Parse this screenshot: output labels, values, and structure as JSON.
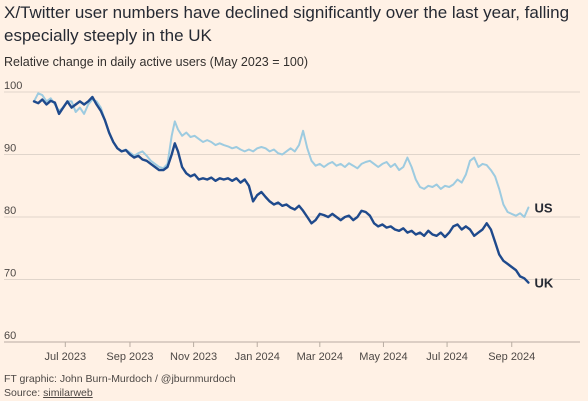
{
  "title": "X/Twitter user numbers have declined significantly over the last year, falling especially steeply in the UK",
  "subtitle": "Relative change in daily active users (May 2023 = 100)",
  "footer": {
    "credit": "FT graphic: John Burn-Murdoch / @jburnmurdoch",
    "source_prefix": "Source: ",
    "source_name": "similarweb"
  },
  "colors": {
    "background": "#fff1e5",
    "gridline": "#e0d5cb",
    "us_series": "#9dcbe0",
    "uk_series": "#1f4a8c"
  },
  "chart_data": {
    "type": "line",
    "ylim": [
      60,
      100
    ],
    "yticks": [
      60,
      70,
      80,
      90,
      100
    ],
    "xlim": [
      "2023-06-01",
      "2024-09-30"
    ],
    "xticks": [
      {
        "date": "2023-07-01",
        "label": "Jul 2023"
      },
      {
        "date": "2023-09-01",
        "label": "Sep 2023"
      },
      {
        "date": "2023-11-01",
        "label": "Nov 2023"
      },
      {
        "date": "2024-01-01",
        "label": "Jan 2024"
      },
      {
        "date": "2024-03-01",
        "label": "Mar 2024"
      },
      {
        "date": "2024-05-01",
        "label": "May 2024"
      },
      {
        "date": "2024-07-01",
        "label": "Jul 2024"
      },
      {
        "date": "2024-09-01",
        "label": "Sep 2024"
      }
    ],
    "grid": true,
    "series": [
      {
        "name": "US",
        "color": "#9dcbe0",
        "points": [
          [
            "2023-06-01",
            98.5
          ],
          [
            "2023-06-05",
            99.8
          ],
          [
            "2023-06-09",
            99.5
          ],
          [
            "2023-06-13",
            98.5
          ],
          [
            "2023-06-17",
            99.0
          ],
          [
            "2023-06-21",
            98.0
          ],
          [
            "2023-06-25",
            97.0
          ],
          [
            "2023-06-29",
            97.5
          ],
          [
            "2023-07-03",
            98.5
          ],
          [
            "2023-07-07",
            98.5
          ],
          [
            "2023-07-11",
            96.8
          ],
          [
            "2023-07-15",
            97.5
          ],
          [
            "2023-07-19",
            96.5
          ],
          [
            "2023-07-23",
            98.0
          ],
          [
            "2023-07-27",
            98.8
          ],
          [
            "2023-07-31",
            98.5
          ],
          [
            "2023-08-04",
            97.5
          ],
          [
            "2023-08-08",
            95.5
          ],
          [
            "2023-08-12",
            93.5
          ],
          [
            "2023-08-16",
            92.0
          ],
          [
            "2023-08-20",
            91.0
          ],
          [
            "2023-08-24",
            90.5
          ],
          [
            "2023-08-28",
            90.8
          ],
          [
            "2023-09-01",
            90.3
          ],
          [
            "2023-09-05",
            89.8
          ],
          [
            "2023-09-09",
            90.2
          ],
          [
            "2023-09-13",
            90.5
          ],
          [
            "2023-09-17",
            89.8
          ],
          [
            "2023-09-21",
            89.0
          ],
          [
            "2023-09-25",
            88.5
          ],
          [
            "2023-09-29",
            88.0
          ],
          [
            "2023-10-03",
            87.8
          ],
          [
            "2023-10-07",
            88.5
          ],
          [
            "2023-10-11",
            93.0
          ],
          [
            "2023-10-14",
            95.3
          ],
          [
            "2023-10-17",
            94.0
          ],
          [
            "2023-10-21",
            93.0
          ],
          [
            "2023-10-25",
            93.5
          ],
          [
            "2023-10-29",
            92.8
          ],
          [
            "2023-11-02",
            93.0
          ],
          [
            "2023-11-06",
            92.5
          ],
          [
            "2023-11-10",
            92.0
          ],
          [
            "2023-11-14",
            92.3
          ],
          [
            "2023-11-18",
            92.0
          ],
          [
            "2023-11-22",
            91.5
          ],
          [
            "2023-11-26",
            91.8
          ],
          [
            "2023-11-30",
            91.5
          ],
          [
            "2023-12-04",
            91.3
          ],
          [
            "2023-12-08",
            91.0
          ],
          [
            "2023-12-12",
            91.2
          ],
          [
            "2023-12-16",
            90.8
          ],
          [
            "2023-12-20",
            90.5
          ],
          [
            "2023-12-24",
            90.8
          ],
          [
            "2023-12-28",
            90.5
          ],
          [
            "2024-01-01",
            91.0
          ],
          [
            "2024-01-05",
            91.2
          ],
          [
            "2024-01-09",
            91.0
          ],
          [
            "2024-01-13",
            90.5
          ],
          [
            "2024-01-17",
            90.8
          ],
          [
            "2024-01-21",
            90.2
          ],
          [
            "2024-01-25",
            90.0
          ],
          [
            "2024-01-29",
            90.5
          ],
          [
            "2024-02-02",
            91.0
          ],
          [
            "2024-02-06",
            90.5
          ],
          [
            "2024-02-10",
            91.5
          ],
          [
            "2024-02-14",
            93.8
          ],
          [
            "2024-02-18",
            91.0
          ],
          [
            "2024-02-22",
            89.0
          ],
          [
            "2024-02-26",
            88.2
          ],
          [
            "2024-03-01",
            88.5
          ],
          [
            "2024-03-05",
            88.0
          ],
          [
            "2024-03-09",
            88.5
          ],
          [
            "2024-03-13",
            88.8
          ],
          [
            "2024-03-17",
            88.2
          ],
          [
            "2024-03-21",
            88.5
          ],
          [
            "2024-03-25",
            88.0
          ],
          [
            "2024-03-29",
            88.6
          ],
          [
            "2024-04-02",
            88.2
          ],
          [
            "2024-04-06",
            87.8
          ],
          [
            "2024-04-10",
            88.5
          ],
          [
            "2024-04-14",
            88.8
          ],
          [
            "2024-04-18",
            89.0
          ],
          [
            "2024-04-22",
            88.5
          ],
          [
            "2024-04-26",
            88.0
          ],
          [
            "2024-04-30",
            88.5
          ],
          [
            "2024-05-04",
            88.8
          ],
          [
            "2024-05-08",
            88.0
          ],
          [
            "2024-05-12",
            88.5
          ],
          [
            "2024-05-16",
            87.5
          ],
          [
            "2024-05-20",
            88.0
          ],
          [
            "2024-05-24",
            89.5
          ],
          [
            "2024-05-28",
            88.0
          ],
          [
            "2024-06-01",
            86.0
          ],
          [
            "2024-06-05",
            84.8
          ],
          [
            "2024-06-09",
            84.5
          ],
          [
            "2024-06-13",
            85.0
          ],
          [
            "2024-06-17",
            84.8
          ],
          [
            "2024-06-21",
            85.2
          ],
          [
            "2024-06-25",
            84.5
          ],
          [
            "2024-06-29",
            85.0
          ],
          [
            "2024-07-03",
            84.8
          ],
          [
            "2024-07-07",
            85.2
          ],
          [
            "2024-07-11",
            86.0
          ],
          [
            "2024-07-15",
            85.5
          ],
          [
            "2024-07-19",
            86.8
          ],
          [
            "2024-07-23",
            89.0
          ],
          [
            "2024-07-27",
            89.5
          ],
          [
            "2024-07-31",
            88.0
          ],
          [
            "2024-08-04",
            88.5
          ],
          [
            "2024-08-08",
            88.3
          ],
          [
            "2024-08-12",
            87.5
          ],
          [
            "2024-08-16",
            86.5
          ],
          [
            "2024-08-20",
            84.5
          ],
          [
            "2024-08-24",
            82.0
          ],
          [
            "2024-08-28",
            80.8
          ],
          [
            "2024-09-01",
            80.5
          ],
          [
            "2024-09-05",
            80.2
          ],
          [
            "2024-09-09",
            80.6
          ],
          [
            "2024-09-13",
            80.0
          ],
          [
            "2024-09-17",
            81.5
          ]
        ]
      },
      {
        "name": "UK",
        "color": "#1f4a8c",
        "points": [
          [
            "2023-06-01",
            98.5
          ],
          [
            "2023-06-05",
            98.2
          ],
          [
            "2023-06-09",
            98.8
          ],
          [
            "2023-06-13",
            98.0
          ],
          [
            "2023-06-17",
            98.6
          ],
          [
            "2023-06-21",
            98.3
          ],
          [
            "2023-06-25",
            96.5
          ],
          [
            "2023-06-29",
            97.5
          ],
          [
            "2023-07-03",
            98.5
          ],
          [
            "2023-07-07",
            97.5
          ],
          [
            "2023-07-11",
            98.0
          ],
          [
            "2023-07-15",
            98.5
          ],
          [
            "2023-07-19",
            98.0
          ],
          [
            "2023-07-23",
            98.5
          ],
          [
            "2023-07-27",
            99.2
          ],
          [
            "2023-07-31",
            98.0
          ],
          [
            "2023-08-04",
            97.0
          ],
          [
            "2023-08-08",
            95.5
          ],
          [
            "2023-08-12",
            93.5
          ],
          [
            "2023-08-16",
            92.0
          ],
          [
            "2023-08-20",
            91.0
          ],
          [
            "2023-08-24",
            90.5
          ],
          [
            "2023-08-28",
            90.7
          ],
          [
            "2023-09-01",
            90.0
          ],
          [
            "2023-09-05",
            89.5
          ],
          [
            "2023-09-09",
            89.8
          ],
          [
            "2023-09-13",
            89.2
          ],
          [
            "2023-09-17",
            89.0
          ],
          [
            "2023-09-21",
            88.5
          ],
          [
            "2023-09-25",
            88.0
          ],
          [
            "2023-09-29",
            87.5
          ],
          [
            "2023-10-03",
            87.5
          ],
          [
            "2023-10-07",
            88.0
          ],
          [
            "2023-10-11",
            90.0
          ],
          [
            "2023-10-14",
            91.8
          ],
          [
            "2023-10-17",
            90.5
          ],
          [
            "2023-10-21",
            88.0
          ],
          [
            "2023-10-25",
            87.0
          ],
          [
            "2023-10-29",
            86.5
          ],
          [
            "2023-11-02",
            86.8
          ],
          [
            "2023-11-06",
            86.0
          ],
          [
            "2023-11-10",
            86.2
          ],
          [
            "2023-11-14",
            86.0
          ],
          [
            "2023-11-18",
            86.3
          ],
          [
            "2023-11-22",
            85.8
          ],
          [
            "2023-11-26",
            86.2
          ],
          [
            "2023-11-30",
            86.0
          ],
          [
            "2023-12-04",
            86.2
          ],
          [
            "2023-12-08",
            85.8
          ],
          [
            "2023-12-12",
            86.2
          ],
          [
            "2023-12-16",
            85.5
          ],
          [
            "2023-12-20",
            86.0
          ],
          [
            "2023-12-24",
            85.0
          ],
          [
            "2023-12-28",
            82.5
          ],
          [
            "2024-01-01",
            83.5
          ],
          [
            "2024-01-05",
            84.0
          ],
          [
            "2024-01-09",
            83.2
          ],
          [
            "2024-01-13",
            82.5
          ],
          [
            "2024-01-17",
            82.0
          ],
          [
            "2024-01-21",
            82.3
          ],
          [
            "2024-01-25",
            81.8
          ],
          [
            "2024-01-29",
            82.0
          ],
          [
            "2024-02-02",
            81.5
          ],
          [
            "2024-02-06",
            81.2
          ],
          [
            "2024-02-10",
            81.8
          ],
          [
            "2024-02-14",
            81.0
          ],
          [
            "2024-02-18",
            80.0
          ],
          [
            "2024-02-22",
            79.0
          ],
          [
            "2024-02-26",
            79.5
          ],
          [
            "2024-03-01",
            80.5
          ],
          [
            "2024-03-05",
            80.3
          ],
          [
            "2024-03-09",
            80.0
          ],
          [
            "2024-03-13",
            80.5
          ],
          [
            "2024-03-17",
            80.0
          ],
          [
            "2024-03-21",
            79.5
          ],
          [
            "2024-03-25",
            80.0
          ],
          [
            "2024-03-29",
            80.2
          ],
          [
            "2024-04-02",
            79.5
          ],
          [
            "2024-04-06",
            80.0
          ],
          [
            "2024-04-10",
            81.0
          ],
          [
            "2024-04-14",
            80.8
          ],
          [
            "2024-04-18",
            80.2
          ],
          [
            "2024-04-22",
            79.0
          ],
          [
            "2024-04-26",
            78.5
          ],
          [
            "2024-04-30",
            78.8
          ],
          [
            "2024-05-04",
            78.3
          ],
          [
            "2024-05-08",
            78.5
          ],
          [
            "2024-05-12",
            78.0
          ],
          [
            "2024-05-16",
            77.8
          ],
          [
            "2024-05-20",
            78.2
          ],
          [
            "2024-05-24",
            77.5
          ],
          [
            "2024-05-28",
            77.8
          ],
          [
            "2024-06-01",
            77.2
          ],
          [
            "2024-06-05",
            77.5
          ],
          [
            "2024-06-09",
            77.0
          ],
          [
            "2024-06-13",
            77.8
          ],
          [
            "2024-06-17",
            77.2
          ],
          [
            "2024-06-21",
            77.0
          ],
          [
            "2024-06-25",
            77.5
          ],
          [
            "2024-06-29",
            76.8
          ],
          [
            "2024-07-03",
            77.5
          ],
          [
            "2024-07-07",
            78.5
          ],
          [
            "2024-07-11",
            78.8
          ],
          [
            "2024-07-15",
            78.0
          ],
          [
            "2024-07-19",
            78.5
          ],
          [
            "2024-07-23",
            78.0
          ],
          [
            "2024-07-27",
            77.0
          ],
          [
            "2024-07-31",
            77.5
          ],
          [
            "2024-08-04",
            78.0
          ],
          [
            "2024-08-08",
            79.0
          ],
          [
            "2024-08-12",
            78.0
          ],
          [
            "2024-08-16",
            76.0
          ],
          [
            "2024-08-20",
            74.0
          ],
          [
            "2024-08-24",
            73.0
          ],
          [
            "2024-08-28",
            72.5
          ],
          [
            "2024-09-01",
            72.0
          ],
          [
            "2024-09-05",
            71.5
          ],
          [
            "2024-09-09",
            70.5
          ],
          [
            "2024-09-13",
            70.2
          ],
          [
            "2024-09-17",
            69.5
          ]
        ]
      }
    ]
  }
}
